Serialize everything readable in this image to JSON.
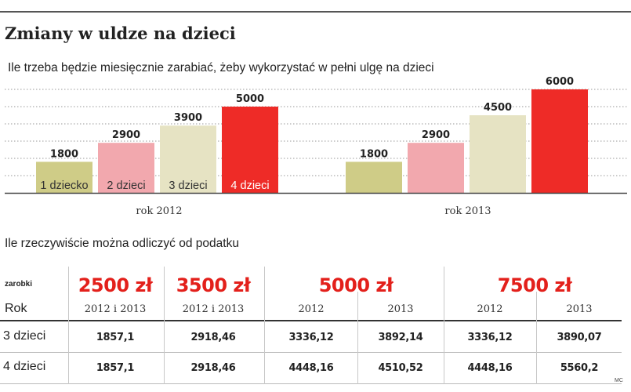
{
  "header": {
    "title": "Zmiany w uldze na dzieci",
    "subtitle": "Ile trzeba będzie miesięcznie zarabiać, żeby wykorzystać w pełni ulgę na dzieci"
  },
  "chart_data": {
    "type": "bar",
    "title": "Zmiany w uldze na dzieci",
    "subtitle": "Ile trzeba będzie miesięcznie zarabiać, żeby wykorzystać w pełni ulgę na dzieci",
    "groups": [
      "rok 2012",
      "rok 2013"
    ],
    "series": [
      {
        "name": "1 dziecko",
        "color": "#cfcc87",
        "values": [
          1800,
          1800
        ]
      },
      {
        "name": "2 dzieci",
        "color": "#f2a8ae",
        "values": [
          2900,
          2900
        ]
      },
      {
        "name": "3 dzieci",
        "color": "#e6e3c3",
        "values": [
          3900,
          4500
        ]
      },
      {
        "name": "4 dzieci",
        "color": "#ee2b27",
        "values": [
          5000,
          6000
        ]
      }
    ],
    "ylim": [
      0,
      6000
    ],
    "grid": true,
    "legend": "inside bars (first group)"
  },
  "table": {
    "title": "Ile rzeczywiście można odliczyć od podatku",
    "zarobki_label": "zarobki",
    "rok_label": "Rok",
    "income_headers": [
      "2500 zł",
      "3500 zł",
      "5000 zł",
      "7500 zł"
    ],
    "years": [
      "2012 i 2013",
      "2012 i 2013",
      "2012",
      "2013",
      "2012",
      "2013"
    ],
    "rows": [
      {
        "label": "3 dzieci",
        "values": [
          "1857,1",
          "2918,46",
          "3336,12",
          "3892,14",
          "3336,12",
          "3890,07"
        ]
      },
      {
        "label": "4 dzieci",
        "values": [
          "1857,1",
          "2918,46",
          "4448,16",
          "4510,52",
          "4448,16",
          "5560,2"
        ]
      }
    ]
  },
  "footer": {
    "credit": "MC"
  },
  "colors": {
    "accent_red": "#e3201b"
  }
}
